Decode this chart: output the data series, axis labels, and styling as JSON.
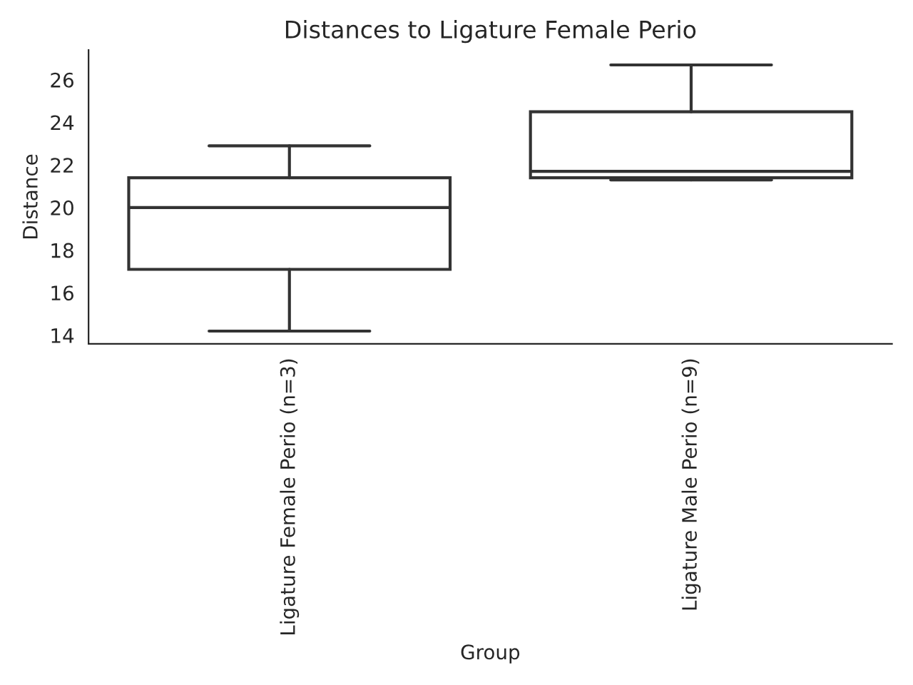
{
  "chart_data": {
    "type": "box",
    "title": "Distances to Ligature Female Perio",
    "xlabel": "Group",
    "ylabel": "Distance",
    "categories": [
      "Ligature Female Perio (n=3)",
      "Ligature Male Perio (n=9)"
    ],
    "boxes": [
      {
        "low": 14.2,
        "q1": 17.1,
        "median": 20.0,
        "q3": 21.4,
        "high": 22.9
      },
      {
        "low": 21.3,
        "q1": 21.4,
        "median": 21.7,
        "q3": 24.5,
        "high": 26.7
      }
    ],
    "color": "#ffffff",
    "ylim": [
      13.6,
      27.4
    ],
    "yticks": [
      14,
      16,
      18,
      20,
      22,
      24,
      26
    ],
    "grid": false,
    "legend": false
  }
}
